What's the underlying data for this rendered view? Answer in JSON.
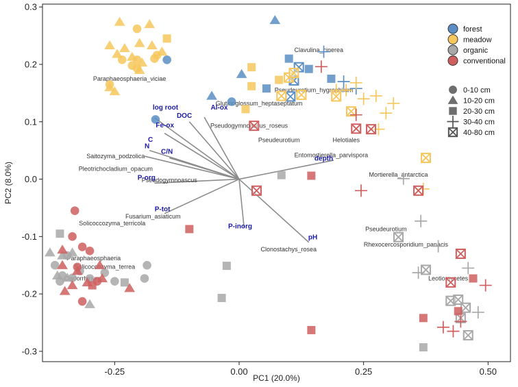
{
  "chart_data": {
    "type": "scatter",
    "xlabel": "PC1 (20.0%)",
    "ylabel": "PC2 (8.0%)",
    "xlim": [
      -0.395,
      0.545
    ],
    "ylim": [
      -0.318,
      0.305
    ],
    "xticks": [
      -0.25,
      0.0,
      0.25,
      0.5
    ],
    "xtick_labels": [
      "-0.25",
      "0.00",
      "0.25",
      "0.50"
    ],
    "yticks": [
      -0.3,
      -0.2,
      -0.1,
      0.0,
      0.1,
      0.2,
      0.3
    ],
    "ytick_labels": [
      "-0.3",
      "-0.2",
      "-0.1",
      "0.0",
      "0.1",
      "0.2",
      "0.3"
    ],
    "colors": {
      "forest": "#5b8ec4",
      "meadow": "#f6c75c",
      "organic": "#a8a8a8",
      "conventional": "#cf5f5f",
      "vector": "#8c8c8c",
      "vector_label": "#1a1aa6"
    },
    "legend_groups": [
      {
        "key": "forest",
        "label": "forest"
      },
      {
        "key": "meadow",
        "label": "meadow"
      },
      {
        "key": "organic",
        "label": "organic"
      },
      {
        "key": "conventional",
        "label": "conventional"
      }
    ],
    "legend_depths": [
      {
        "key": "circle",
        "label": "0-10 cm"
      },
      {
        "key": "triangle",
        "label": "10-20 cm"
      },
      {
        "key": "square",
        "label": "20-30 cm"
      },
      {
        "key": "plus",
        "label": "30-40 cm"
      },
      {
        "key": "boxx",
        "label": "40-80 cm"
      }
    ],
    "vectors": [
      {
        "label": "log root",
        "x": -0.17,
        "y": 0.107,
        "lx": -0.148,
        "ly": 0.121
      },
      {
        "label": "Al-ox",
        "x": -0.07,
        "y": 0.108,
        "lx": -0.04,
        "ly": 0.121
      },
      {
        "label": "DOC",
        "x": -0.1,
        "y": 0.1,
        "lx": -0.11,
        "ly": 0.107
      },
      {
        "label": "Fe-ox",
        "x": -0.15,
        "y": 0.08,
        "lx": -0.149,
        "ly": 0.09
      },
      {
        "label": "C",
        "x": -0.18,
        "y": 0.05,
        "lx": -0.178,
        "ly": 0.065
      },
      {
        "label": "N",
        "x": -0.19,
        "y": 0.04,
        "lx": -0.185,
        "ly": 0.054
      },
      {
        "label": "C/N",
        "x": -0.14,
        "y": 0.037,
        "lx": -0.145,
        "ly": 0.044
      },
      {
        "label": "P-org",
        "x": -0.17,
        "y": -0.007,
        "lx": -0.186,
        "ly": -0.001
      },
      {
        "label": "P-tot",
        "x": -0.15,
        "y": -0.06,
        "lx": -0.154,
        "ly": -0.056
      },
      {
        "label": "P-inorg",
        "x": 0.01,
        "y": -0.085,
        "lx": 0.002,
        "ly": -0.086
      },
      {
        "label": "depth",
        "x": 0.19,
        "y": 0.033,
        "lx": 0.17,
        "ly": 0.032
      },
      {
        "label": "pH",
        "x": 0.14,
        "y": -0.11,
        "lx": 0.148,
        "ly": -0.105
      }
    ],
    "taxa": [
      {
        "label": "Clavulina_cinerea",
        "x": 0.16,
        "y": 0.225
      },
      {
        "label": "Paraphaeosphaeria_viciae",
        "x": -0.22,
        "y": 0.175
      },
      {
        "label": "Pseudeurotium_hygrophilum",
        "x": 0.15,
        "y": 0.155
      },
      {
        "label": "Glutinoglossum_heptaseptatum",
        "x": 0.04,
        "y": 0.132
      },
      {
        "label": "Pseudogymnoascus_roseus",
        "x": 0.02,
        "y": 0.093
      },
      {
        "label": "Pseudeurotium",
        "x": 0.08,
        "y": 0.068
      },
      {
        "label": "Helotiales",
        "x": 0.215,
        "y": 0.068
      },
      {
        "label": "Entomortierella_parvispora",
        "x": 0.185,
        "y": 0.042
      },
      {
        "label": "Saitozyma_podzolica",
        "x": -0.248,
        "y": 0.04
      },
      {
        "label": "Pleotrichocladium_opacum",
        "x": -0.248,
        "y": 0.018
      },
      {
        "label": "Pseudogymnoascus",
        "x": -0.14,
        "y": -0.002
      },
      {
        "label": "Mortierella_antarctica",
        "x": 0.32,
        "y": 0.008
      },
      {
        "label": "Fusarium_asiaticum",
        "x": -0.173,
        "y": -0.065
      },
      {
        "label": "Solicoccozyma_terricola",
        "x": -0.255,
        "y": -0.077
      },
      {
        "label": "Pseudeurotium",
        "x": 0.295,
        "y": -0.087
      },
      {
        "label": "Clonostachys_rosea",
        "x": 0.0995,
        "y": -0.122
      },
      {
        "label": "Paraphaeosphaeria",
        "x": -0.292,
        "y": -0.138
      },
      {
        "label": "Rhexocercosporidium_panacis",
        "x": 0.335,
        "y": -0.114
      },
      {
        "label": "Solicoccozyma_terrea",
        "x": -0.27,
        "y": -0.153
      },
      {
        "label": "Cladorrhinum",
        "x": -0.315,
        "y": -0.173
      },
      {
        "label": "Leotiomycetes",
        "x": 0.42,
        "y": -0.173
      }
    ],
    "points": [
      {
        "g": "forest",
        "s": "triangle",
        "x": 0.072,
        "y": 0.277
      },
      {
        "g": "forest",
        "s": "triangle",
        "x": 0.005,
        "y": 0.183
      },
      {
        "g": "forest",
        "s": "triangle",
        "x": -0.055,
        "y": 0.145
      },
      {
        "g": "forest",
        "s": "circle",
        "x": -0.145,
        "y": 0.208
      },
      {
        "g": "forest",
        "s": "circle",
        "x": -0.015,
        "y": 0.135
      },
      {
        "g": "forest",
        "s": "circle",
        "x": -0.168,
        "y": 0.104
      },
      {
        "g": "forest",
        "s": "square",
        "x": 0.055,
        "y": 0.158
      },
      {
        "g": "forest",
        "s": "square",
        "x": 0.1,
        "y": 0.21
      },
      {
        "g": "forest",
        "s": "square",
        "x": 0.14,
        "y": 0.192
      },
      {
        "g": "forest",
        "s": "square",
        "x": 0.185,
        "y": 0.175
      },
      {
        "g": "forest",
        "s": "plus",
        "x": 0.17,
        "y": 0.222
      },
      {
        "g": "forest",
        "s": "plus",
        "x": 0.21,
        "y": 0.17
      },
      {
        "g": "forest",
        "s": "plus",
        "x": 0.235,
        "y": 0.158
      },
      {
        "g": "forest",
        "s": "boxx",
        "x": 0.12,
        "y": 0.195
      },
      {
        "g": "forest",
        "s": "boxx",
        "x": 0.11,
        "y": 0.172
      },
      {
        "g": "forest",
        "s": "boxx",
        "x": 0.103,
        "y": 0.144
      },
      {
        "g": "meadow",
        "s": "triangle",
        "x": -0.24,
        "y": 0.274
      },
      {
        "g": "meadow",
        "s": "triangle",
        "x": -0.18,
        "y": 0.27
      },
      {
        "g": "meadow",
        "s": "triangle",
        "x": -0.26,
        "y": 0.233
      },
      {
        "g": "meadow",
        "s": "triangle",
        "x": -0.23,
        "y": 0.228
      },
      {
        "g": "meadow",
        "s": "triangle",
        "x": -0.2,
        "y": 0.237
      },
      {
        "g": "meadow",
        "s": "triangle",
        "x": -0.175,
        "y": 0.233
      },
      {
        "g": "meadow",
        "s": "triangle",
        "x": -0.245,
        "y": 0.218
      },
      {
        "g": "meadow",
        "s": "triangle",
        "x": -0.215,
        "y": 0.213
      },
      {
        "g": "meadow",
        "s": "triangle",
        "x": -0.195,
        "y": 0.203
      },
      {
        "g": "meadow",
        "s": "triangle",
        "x": -0.155,
        "y": 0.222
      },
      {
        "g": "meadow",
        "s": "triangle",
        "x": -0.2,
        "y": 0.19
      },
      {
        "g": "meadow",
        "s": "triangle",
        "x": -0.26,
        "y": 0.16
      },
      {
        "g": "meadow",
        "s": "triangle",
        "x": -0.25,
        "y": 0.153
      },
      {
        "g": "meadow",
        "s": "circle",
        "x": -0.205,
        "y": 0.262
      },
      {
        "g": "meadow",
        "s": "circle",
        "x": -0.235,
        "y": 0.208
      },
      {
        "g": "meadow",
        "s": "circle",
        "x": -0.205,
        "y": 0.208
      },
      {
        "g": "meadow",
        "s": "circle",
        "x": -0.17,
        "y": 0.21
      },
      {
        "g": "meadow",
        "s": "circle",
        "x": -0.165,
        "y": 0.216
      },
      {
        "g": "meadow",
        "s": "circle",
        "x": -0.215,
        "y": 0.198
      },
      {
        "g": "meadow",
        "s": "circle",
        "x": -0.205,
        "y": 0.193
      },
      {
        "g": "meadow",
        "s": "circle",
        "x": -0.26,
        "y": 0.165
      },
      {
        "g": "meadow",
        "s": "square",
        "x": -0.145,
        "y": 0.245
      },
      {
        "g": "meadow",
        "s": "square",
        "x": 0.025,
        "y": 0.195
      },
      {
        "g": "meadow",
        "s": "square",
        "x": 0.025,
        "y": 0.162
      },
      {
        "g": "meadow",
        "s": "square",
        "x": 0.08,
        "y": 0.173
      },
      {
        "g": "meadow",
        "s": "square",
        "x": 0.013,
        "y": 0.122
      },
      {
        "g": "meadow",
        "s": "plus",
        "x": 0.195,
        "y": 0.155
      },
      {
        "g": "meadow",
        "s": "plus",
        "x": 0.215,
        "y": 0.155
      },
      {
        "g": "meadow",
        "s": "plus",
        "x": 0.235,
        "y": 0.168
      },
      {
        "g": "meadow",
        "s": "plus",
        "x": 0.25,
        "y": 0.14
      },
      {
        "g": "meadow",
        "s": "plus",
        "x": 0.275,
        "y": 0.145
      },
      {
        "g": "meadow",
        "s": "plus",
        "x": 0.295,
        "y": 0.115
      },
      {
        "g": "meadow",
        "s": "plus",
        "x": 0.31,
        "y": 0.132
      },
      {
        "g": "meadow",
        "s": "plus",
        "x": 0.28,
        "y": 0.087
      },
      {
        "g": "meadow",
        "s": "plus",
        "x": 0.37,
        "y": -0.017
      },
      {
        "g": "meadow",
        "s": "boxx",
        "x": 0.1,
        "y": 0.177
      },
      {
        "g": "meadow",
        "s": "boxx",
        "x": 0.11,
        "y": 0.185
      },
      {
        "g": "meadow",
        "s": "boxx",
        "x": 0.085,
        "y": 0.145
      },
      {
        "g": "meadow",
        "s": "boxx",
        "x": 0.125,
        "y": 0.147
      },
      {
        "g": "meadow",
        "s": "boxx",
        "x": 0.195,
        "y": 0.144
      },
      {
        "g": "meadow",
        "s": "boxx",
        "x": 0.225,
        "y": 0.118
      },
      {
        "g": "meadow",
        "s": "boxx",
        "x": 0.375,
        "y": 0.037
      },
      {
        "g": "organic",
        "s": "triangle",
        "x": -0.38,
        "y": -0.128
      },
      {
        "g": "organic",
        "s": "triangle",
        "x": -0.355,
        "y": -0.133
      },
      {
        "g": "organic",
        "s": "triangle",
        "x": -0.335,
        "y": -0.128
      },
      {
        "g": "organic",
        "s": "triangle",
        "x": -0.365,
        "y": -0.168
      },
      {
        "g": "organic",
        "s": "triangle",
        "x": -0.345,
        "y": -0.172
      },
      {
        "g": "organic",
        "s": "triangle",
        "x": -0.3,
        "y": -0.218
      },
      {
        "g": "organic",
        "s": "circle",
        "x": -0.37,
        "y": -0.15
      },
      {
        "g": "organic",
        "s": "circle",
        "x": -0.345,
        "y": -0.133
      },
      {
        "g": "organic",
        "s": "circle",
        "x": -0.355,
        "y": -0.168
      },
      {
        "g": "organic",
        "s": "circle",
        "x": -0.36,
        "y": -0.178
      },
      {
        "g": "organic",
        "s": "circle",
        "x": -0.335,
        "y": -0.172
      },
      {
        "g": "organic",
        "s": "circle",
        "x": -0.32,
        "y": -0.16
      },
      {
        "g": "organic",
        "s": "circle",
        "x": -0.3,
        "y": -0.173
      },
      {
        "g": "organic",
        "s": "circle",
        "x": -0.27,
        "y": -0.163
      },
      {
        "g": "organic",
        "s": "circle",
        "x": -0.25,
        "y": -0.178
      },
      {
        "g": "organic",
        "s": "circle",
        "x": -0.185,
        "y": -0.15
      },
      {
        "g": "organic",
        "s": "circle",
        "x": -0.19,
        "y": -0.173
      },
      {
        "g": "organic",
        "s": "square",
        "x": -0.36,
        "y": -0.095
      },
      {
        "g": "organic",
        "s": "square",
        "x": -0.23,
        "y": -0.18
      },
      {
        "g": "organic",
        "s": "square",
        "x": -0.035,
        "y": -0.207
      },
      {
        "g": "organic",
        "s": "square",
        "x": -0.025,
        "y": -0.151
      },
      {
        "g": "organic",
        "s": "square",
        "x": 0.085,
        "y": 0.007
      },
      {
        "g": "organic",
        "s": "square",
        "x": 0.37,
        "y": -0.293
      },
      {
        "g": "organic",
        "s": "plus",
        "x": 0.33,
        "y": 0.001
      },
      {
        "g": "organic",
        "s": "plus",
        "x": 0.365,
        "y": -0.073
      },
      {
        "g": "organic",
        "s": "plus",
        "x": 0.4,
        "y": -0.117
      },
      {
        "g": "organic",
        "s": "plus",
        "x": 0.36,
        "y": -0.163
      },
      {
        "g": "organic",
        "s": "plus",
        "x": 0.46,
        "y": -0.155
      },
      {
        "g": "organic",
        "s": "plus",
        "x": 0.48,
        "y": -0.232
      },
      {
        "g": "organic",
        "s": "boxx",
        "x": 0.32,
        "y": -0.101
      },
      {
        "g": "organic",
        "s": "boxx",
        "x": 0.375,
        "y": -0.158
      },
      {
        "g": "organic",
        "s": "boxx",
        "x": 0.425,
        "y": -0.212
      },
      {
        "g": "organic",
        "s": "boxx",
        "x": 0.44,
        "y": -0.21
      },
      {
        "g": "organic",
        "s": "boxx",
        "x": 0.455,
        "y": -0.224
      },
      {
        "g": "organic",
        "s": "boxx",
        "x": 0.445,
        "y": -0.242
      },
      {
        "g": "organic",
        "s": "boxx",
        "x": 0.46,
        "y": -0.272
      },
      {
        "g": "conventional",
        "s": "triangle",
        "x": -0.355,
        "y": -0.15
      },
      {
        "g": "conventional",
        "s": "triangle",
        "x": -0.325,
        "y": -0.16
      },
      {
        "g": "conventional",
        "s": "triangle",
        "x": -0.335,
        "y": -0.185
      },
      {
        "g": "conventional",
        "s": "triangle",
        "x": -0.35,
        "y": -0.195
      },
      {
        "g": "conventional",
        "s": "triangle",
        "x": -0.305,
        "y": -0.18
      },
      {
        "g": "conventional",
        "s": "triangle",
        "x": -0.28,
        "y": -0.15
      },
      {
        "g": "conventional",
        "s": "triangle",
        "x": -0.275,
        "y": -0.173
      },
      {
        "g": "conventional",
        "s": "triangle",
        "x": -0.22,
        "y": -0.19
      },
      {
        "g": "conventional",
        "s": "triangle",
        "x": -0.355,
        "y": -0.123
      },
      {
        "g": "conventional",
        "s": "circle",
        "x": -0.33,
        "y": -0.055
      },
      {
        "g": "conventional",
        "s": "circle",
        "x": -0.335,
        "y": -0.1
      },
      {
        "g": "conventional",
        "s": "circle",
        "x": -0.315,
        "y": -0.118
      },
      {
        "g": "conventional",
        "s": "circle",
        "x": -0.3,
        "y": -0.125
      },
      {
        "g": "conventional",
        "s": "circle",
        "x": -0.325,
        "y": -0.153
      },
      {
        "g": "conventional",
        "s": "circle",
        "x": -0.315,
        "y": -0.213
      },
      {
        "g": "conventional",
        "s": "circle",
        "x": -0.285,
        "y": -0.178
      },
      {
        "g": "conventional",
        "s": "square",
        "x": -0.1,
        "y": -0.087
      },
      {
        "g": "conventional",
        "s": "square",
        "x": -0.295,
        "y": -0.185
      },
      {
        "g": "conventional",
        "s": "square",
        "x": 0.145,
        "y": 0.006
      },
      {
        "g": "conventional",
        "s": "square",
        "x": 0.145,
        "y": -0.263
      },
      {
        "g": "conventional",
        "s": "square",
        "x": 0.37,
        "y": -0.242
      },
      {
        "g": "conventional",
        "s": "square",
        "x": 0.44,
        "y": -0.23
      },
      {
        "g": "conventional",
        "s": "square",
        "x": 0.47,
        "y": -0.173
      },
      {
        "g": "conventional",
        "s": "plus",
        "x": 0.165,
        "y": 0.196
      },
      {
        "g": "conventional",
        "s": "plus",
        "x": 0.235,
        "y": 0.112
      },
      {
        "g": "conventional",
        "s": "plus",
        "x": 0.245,
        "y": -0.02
      },
      {
        "g": "conventional",
        "s": "plus",
        "x": 0.41,
        "y": -0.258
      },
      {
        "g": "conventional",
        "s": "plus",
        "x": 0.43,
        "y": -0.265
      },
      {
        "g": "conventional",
        "s": "plus",
        "x": 0.445,
        "y": -0.248
      },
      {
        "g": "conventional",
        "s": "plus",
        "x": 0.495,
        "y": -0.185
      },
      {
        "g": "conventional",
        "s": "boxx",
        "x": 0.035,
        "y": -0.02
      },
      {
        "g": "conventional",
        "s": "boxx",
        "x": 0.03,
        "y": 0.093
      },
      {
        "g": "conventional",
        "s": "boxx",
        "x": 0.235,
        "y": 0.088
      },
      {
        "g": "conventional",
        "s": "boxx",
        "x": 0.265,
        "y": 0.087
      },
      {
        "g": "conventional",
        "s": "boxx",
        "x": 0.36,
        "y": -0.02
      },
      {
        "g": "conventional",
        "s": "boxx",
        "x": 0.425,
        "y": -0.18
      },
      {
        "g": "conventional",
        "s": "boxx",
        "x": 0.445,
        "y": -0.13
      }
    ]
  }
}
